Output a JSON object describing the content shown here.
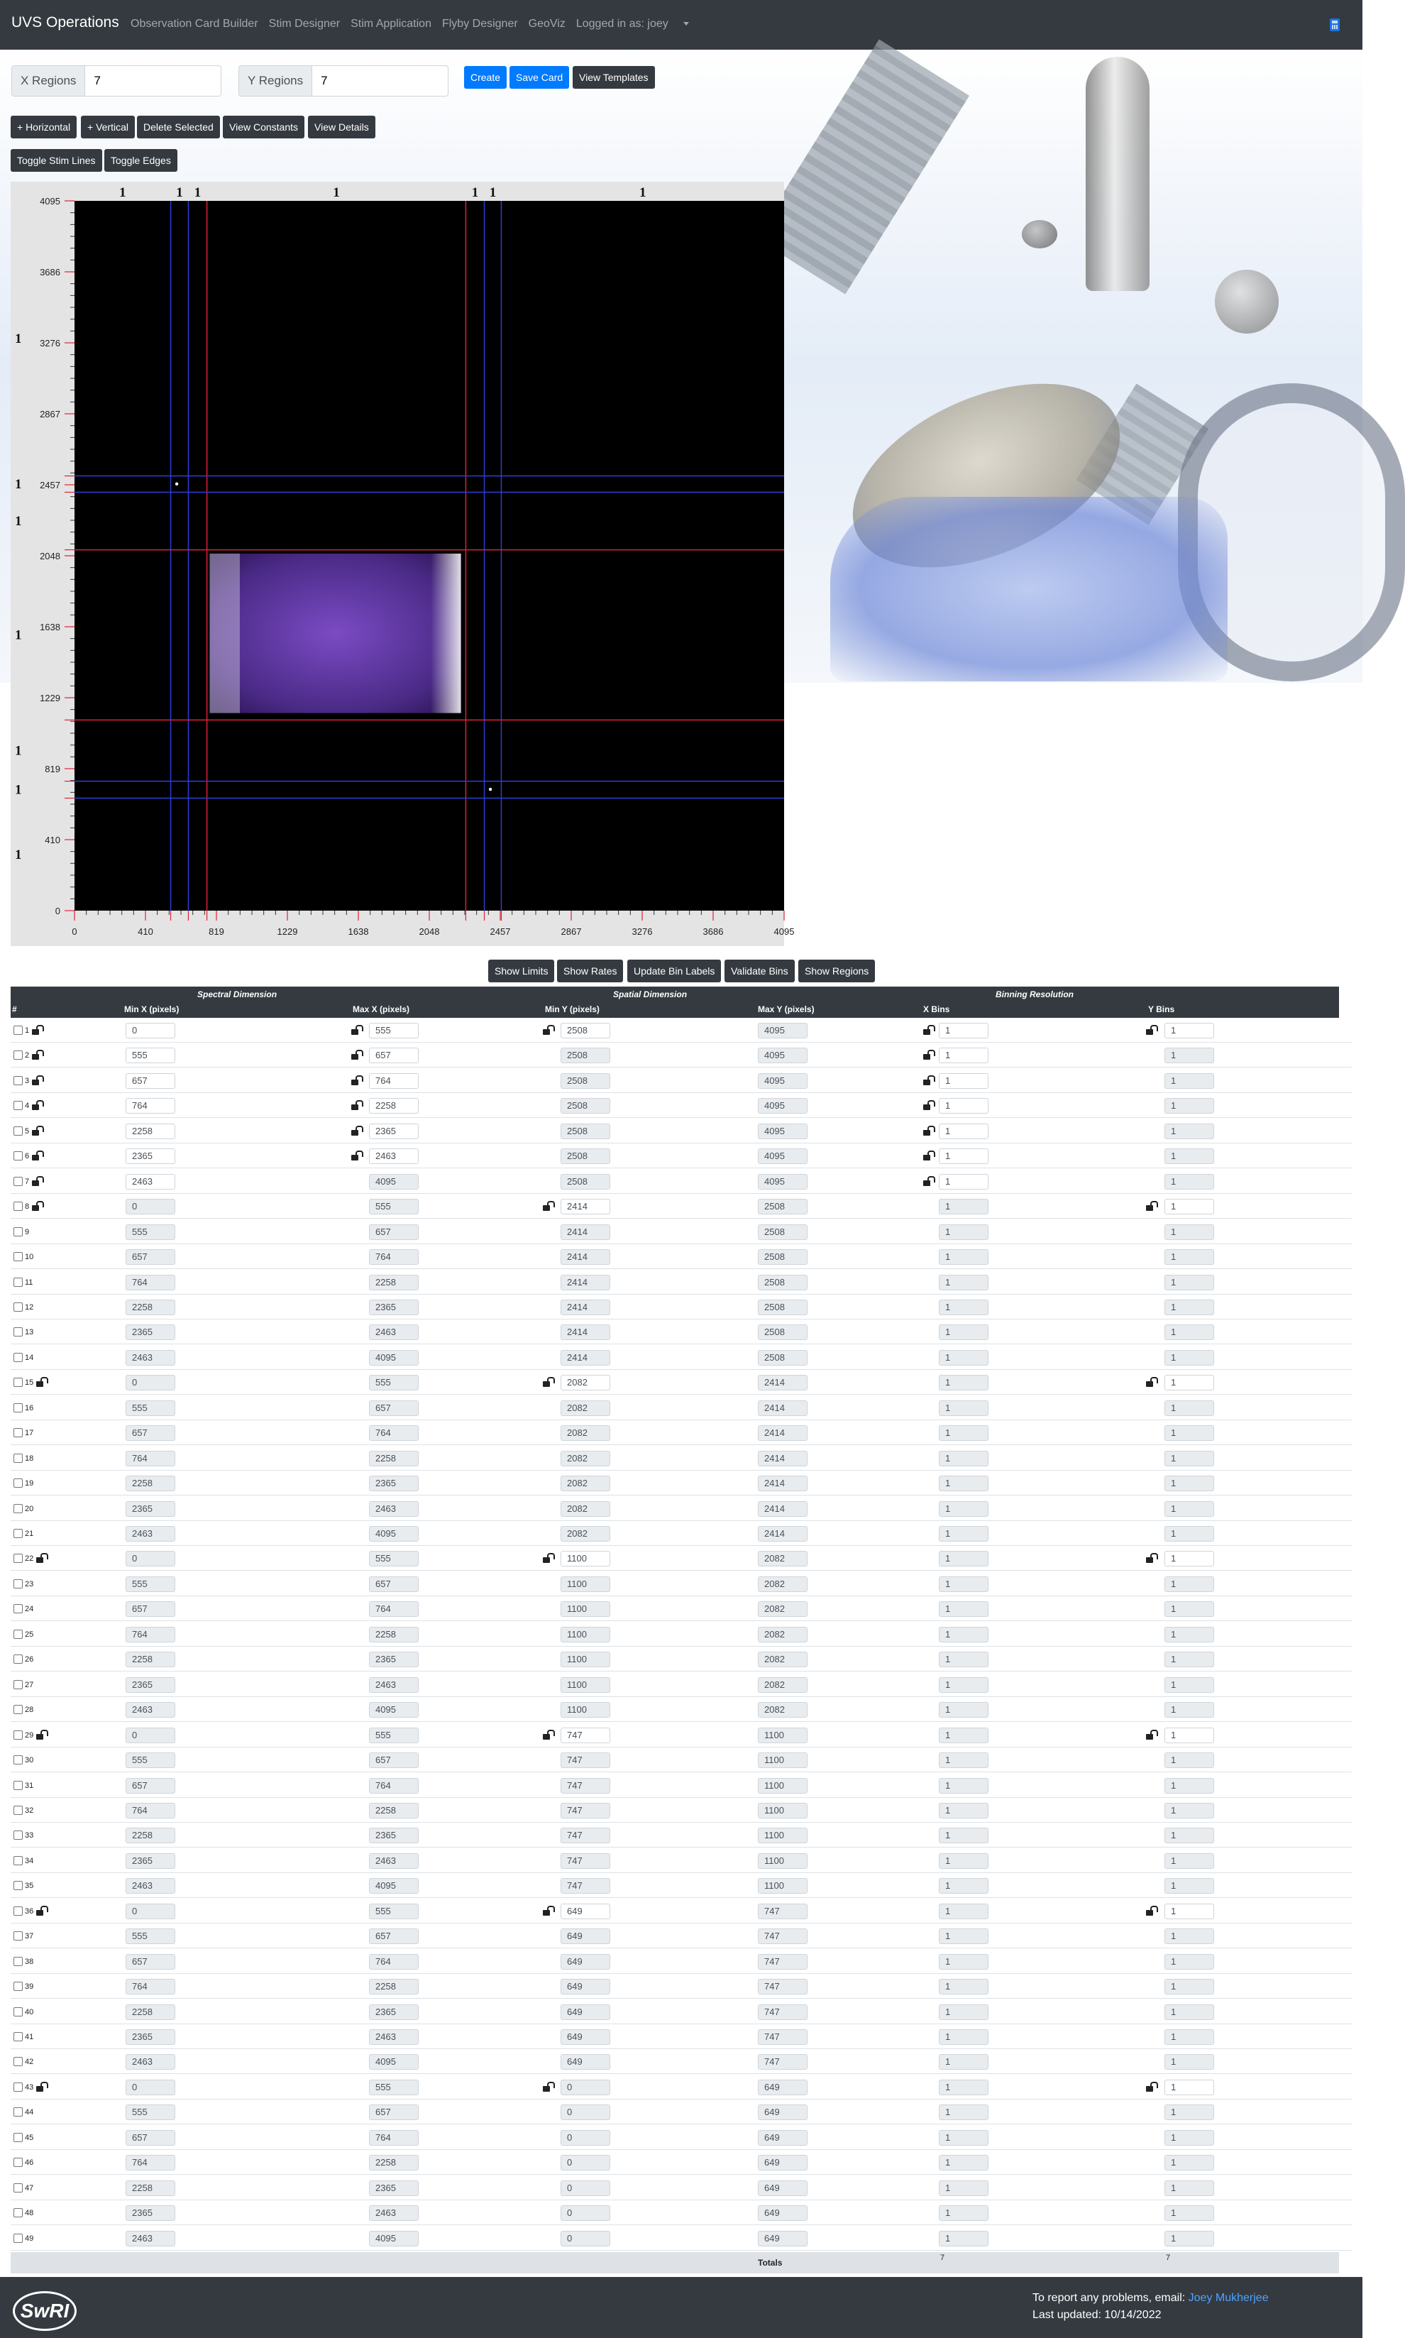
{
  "nav": {
    "brand": "UVS Operations",
    "links": [
      "Observation Card Builder",
      "Stim Designer",
      "Stim Application",
      "Flyby Designer",
      "GeoViz"
    ],
    "user": "Logged in as: joey",
    "icon": "calculator-icon"
  },
  "controls": {
    "x_regions_label": "X Regions",
    "x_regions_value": "7",
    "y_regions_label": "Y Regions",
    "y_regions_value": "7",
    "create": "Create",
    "save": "Save Card",
    "templates": "View Templates",
    "add_horizontal": "+ Horizontal",
    "add_vertical": "+ Vertical",
    "delete_selected": "Delete Selected",
    "view_constants": "View Constants",
    "view_details": "View Details",
    "toggle_stim": "Toggle Stim Lines",
    "toggle_edges": "Toggle Edges",
    "show_limits": "Show Limits",
    "show_rates": "Show Rates",
    "update_bin_labels": "Update Bin Labels",
    "validate_bins": "Validate Bins",
    "show_regions": "Show Regions"
  },
  "chart_data": {
    "type": "heatmap",
    "xlim": [
      0,
      4095
    ],
    "ylim": [
      0,
      4095
    ],
    "xticks": [
      "0",
      "410",
      "819",
      "1229",
      "1638",
      "2048",
      "2457",
      "2867",
      "3276",
      "3686",
      "4095"
    ],
    "yticks": [
      "4095",
      "3686",
      "3276",
      "2867",
      "2457",
      "2048",
      "1638",
      "1229",
      "819",
      "410",
      "0"
    ],
    "x_bounds": [
      555,
      657,
      764,
      2258,
      2365,
      2463
    ],
    "y_bounds": [
      2508,
      2414,
      2082,
      1100,
      747,
      649
    ],
    "x_bin_labels": [
      "1",
      "1",
      "1",
      "1",
      "1",
      "1",
      "1"
    ],
    "y_bin_labels": [
      "1",
      "1",
      "1",
      "1",
      "1",
      "1",
      "1"
    ],
    "stim_points": [
      [
        590,
        2462
      ],
      [
        2400,
        700
      ]
    ],
    "illuminated_region": {
      "x0": 780,
      "x1": 2230,
      "y0": 1140,
      "y1": 2060
    }
  },
  "table": {
    "groups": [
      "Spectral Dimension",
      "Spatial Dimension",
      "Binning Resolution"
    ],
    "columns": [
      "#",
      "Min X (pixels)",
      "Max X (pixels)",
      "Min Y (pixels)",
      "Max Y (pixels)",
      "X Bins",
      "Y Bins"
    ],
    "x_pairs": [
      [
        "0",
        "555"
      ],
      [
        "555",
        "657"
      ],
      [
        "657",
        "764"
      ],
      [
        "764",
        "2258"
      ],
      [
        "2258",
        "2365"
      ],
      [
        "2365",
        "2463"
      ],
      [
        "2463",
        "4095"
      ]
    ],
    "y_pairs": [
      [
        "2508",
        "4095"
      ],
      [
        "2414",
        "2508"
      ],
      [
        "2082",
        "2414"
      ],
      [
        "1100",
        "2082"
      ],
      [
        "747",
        "1100"
      ],
      [
        "649",
        "747"
      ],
      [
        "0",
        "649"
      ]
    ],
    "bin_value": "1",
    "totals_label": "Totals",
    "total_x_bins": "7",
    "total_y_bins": "7"
  },
  "footer": {
    "logo": "SwRI",
    "report_text": "To report any problems, email:",
    "report_name": "Joey Mukherjee",
    "updated": "Last updated: 10/14/2022"
  }
}
